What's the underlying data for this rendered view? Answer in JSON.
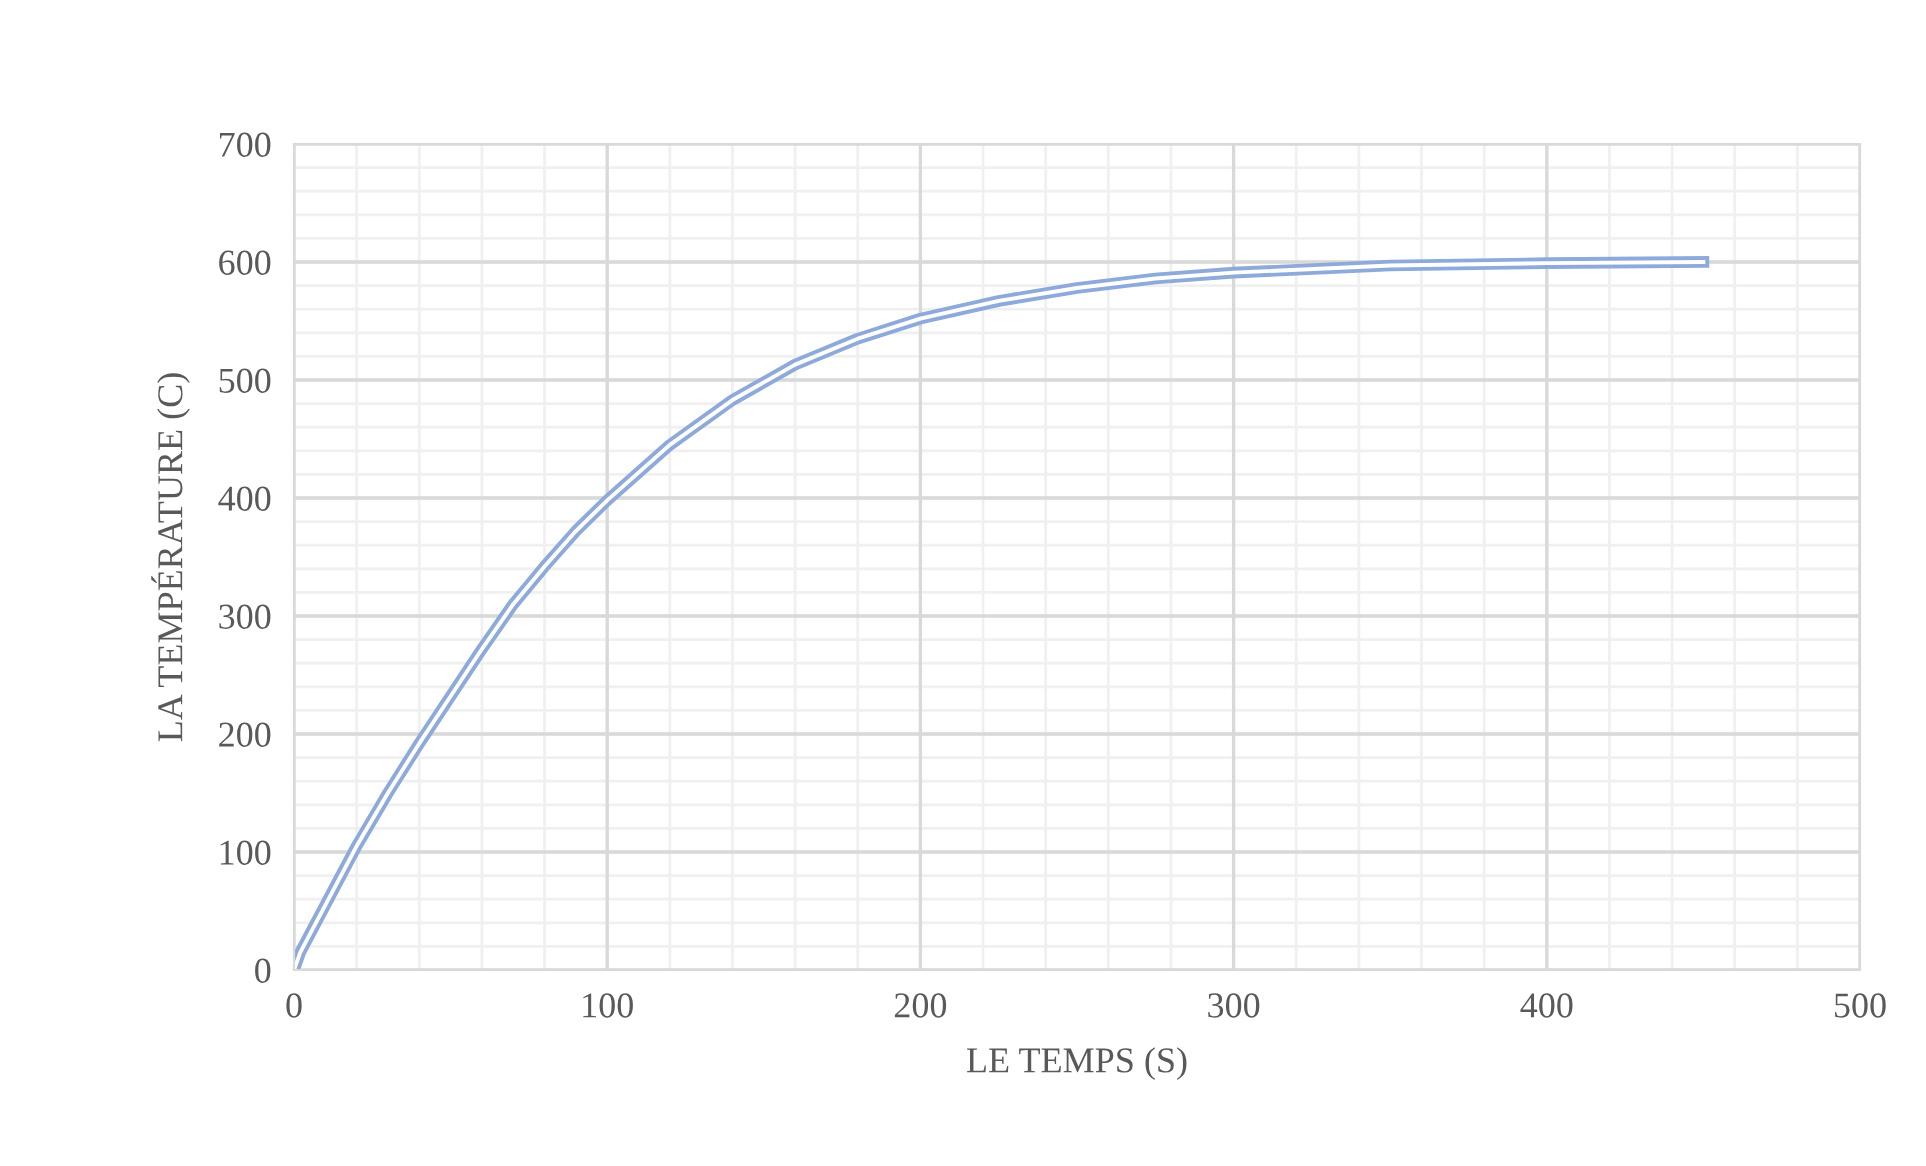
{
  "chart_data": {
    "type": "line",
    "xlabel": "LE TEMPS (S)",
    "ylabel": "LA TEMPÉRATURE (C)",
    "x": [
      0,
      2,
      10,
      20,
      30,
      40,
      50,
      60,
      70,
      80,
      90,
      100,
      120,
      140,
      160,
      180,
      200,
      225,
      250,
      275,
      300,
      350,
      400,
      450
    ],
    "series": [
      {
        "color": "#8eaadb",
        "values": [
          0,
          15,
          55,
          105,
          150,
          192,
          232,
          272,
          310,
          342,
          372,
          398,
          445,
          483,
          513,
          535,
          552,
          567,
          578,
          586,
          591,
          597,
          599,
          600
        ]
      }
    ],
    "xlim": [
      0,
      500
    ],
    "xticks": [
      0,
      100,
      200,
      300,
      400,
      500
    ],
    "ylim": [
      0,
      700
    ],
    "yticks": [
      0,
      100,
      200,
      300,
      400,
      500,
      600,
      700
    ],
    "grid": true,
    "marker": "none",
    "line_style": "solid",
    "legend": false
  }
}
